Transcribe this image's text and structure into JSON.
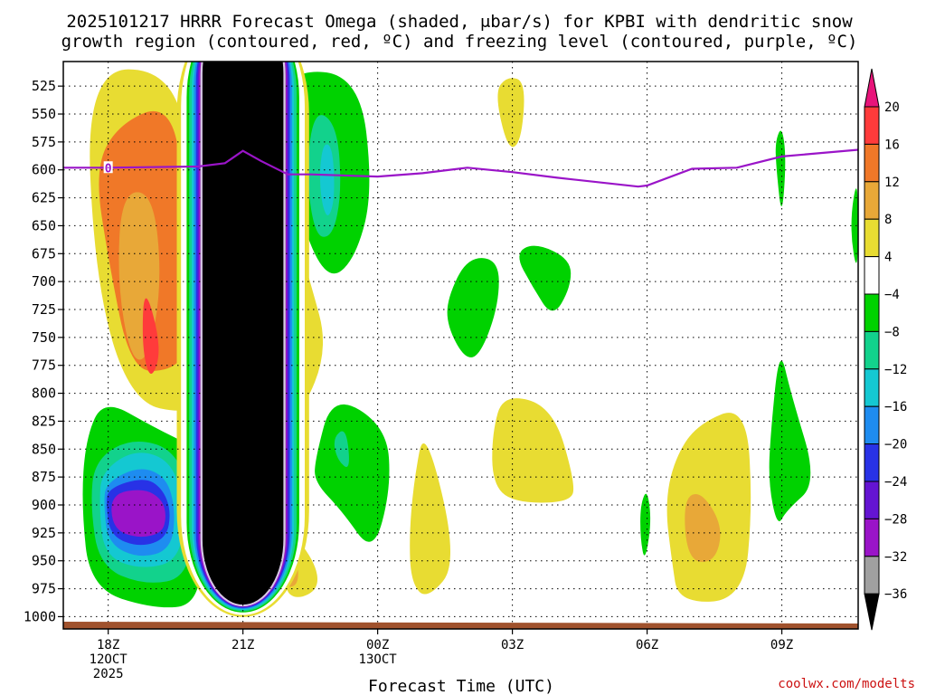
{
  "chart_data": {
    "type": "heatmap",
    "title_line1": "2025101217 HRRR Forecast Omega (shaded, μbar/s) for KPBI with dendritic snow",
    "title_line2": "growth region (contoured, red, ºC) and freezing level (contoured, purple, ºC)",
    "xlabel": "Forecast Time (UTC)",
    "credit": "coolwx.com/modelts",
    "x_domain_hours": [
      -1,
      16.7
    ],
    "y_domain_hPa": [
      503,
      1011
    ],
    "y_ticks": [
      525,
      550,
      575,
      600,
      625,
      650,
      675,
      700,
      725,
      750,
      775,
      800,
      825,
      850,
      875,
      900,
      925,
      950,
      975,
      1000
    ],
    "x_ticks": [
      {
        "hour": 0,
        "lines": [
          "18Z",
          "12OCT",
          "2025"
        ]
      },
      {
        "hour": 3,
        "lines": [
          "21Z"
        ]
      },
      {
        "hour": 6,
        "lines": [
          "00Z",
          "13OCT"
        ]
      },
      {
        "hour": 9,
        "lines": [
          "03Z"
        ]
      },
      {
        "hour": 12,
        "lines": [
          "06Z"
        ]
      },
      {
        "hour": 15,
        "lines": [
          "09Z"
        ]
      }
    ],
    "colorbar": {
      "labels": [
        "20",
        "16",
        "12",
        "8",
        "4",
        "−4",
        "−8",
        "−12",
        "−16",
        "−20",
        "−24",
        "−28",
        "−32",
        "−36"
      ],
      "bands": [
        {
          "from": 16,
          "to": 20,
          "color": "#ff3b3b"
        },
        {
          "from": 12,
          "to": 16,
          "color": "#f07828"
        },
        {
          "from": 8,
          "to": 12,
          "color": "#e8a838"
        },
        {
          "from": 4,
          "to": 8,
          "color": "#e8dc32"
        },
        {
          "from": -4,
          "to": 4,
          "color": "#ffffff"
        },
        {
          "from": -8,
          "to": -4,
          "color": "#00d200"
        },
        {
          "from": -12,
          "to": -8,
          "color": "#12d28c"
        },
        {
          "from": -16,
          "to": -12,
          "color": "#14c8d2"
        },
        {
          "from": -20,
          "to": -16,
          "color": "#1e8cf0"
        },
        {
          "from": -24,
          "to": -20,
          "color": "#2832e6"
        },
        {
          "from": -28,
          "to": -24,
          "color": "#6414d2"
        },
        {
          "from": -32,
          "to": -28,
          "color": "#9a14c8"
        },
        {
          "from": -36,
          "to": -32,
          "color": "#a0a0a0"
        }
      ],
      "over_color": "#e8147a",
      "under_color": "#000000"
    },
    "freezing_level": {
      "label": "0",
      "color": "#9a14c8",
      "points": [
        [
          -1,
          598
        ],
        [
          0,
          598
        ],
        [
          2,
          597
        ],
        [
          2.6,
          594
        ],
        [
          3,
          583
        ],
        [
          3.4,
          592
        ],
        [
          4,
          604
        ],
        [
          4.5,
          604
        ],
        [
          6,
          606
        ],
        [
          7,
          603
        ],
        [
          8,
          598
        ],
        [
          9,
          602
        ],
        [
          10,
          607
        ],
        [
          11.8,
          615
        ],
        [
          12,
          614
        ],
        [
          13,
          599
        ],
        [
          14,
          598
        ],
        [
          15,
          588
        ],
        [
          16.7,
          582
        ]
      ]
    },
    "omega_fields": [
      {
        "value": 6,
        "points": [
          [
            -0.5,
            510
          ],
          [
            1.4,
            510
          ],
          [
            1.9,
            600
          ],
          [
            2.0,
            800
          ],
          [
            1.8,
            819
          ],
          [
            0.5,
            808
          ],
          [
            -0.3,
            700
          ]
        ]
      },
      {
        "value": 14,
        "points": [
          [
            0.2,
            560
          ],
          [
            1.3,
            540
          ],
          [
            1.7,
            600
          ],
          [
            1.8,
            760
          ],
          [
            1.4,
            780
          ],
          [
            0.5,
            780
          ],
          [
            0.0,
            680
          ],
          [
            -0.3,
            600
          ]
        ]
      },
      {
        "value": 10,
        "points": [
          [
            0.3,
            620
          ],
          [
            1.0,
            620
          ],
          [
            1.2,
            700
          ],
          [
            0.9,
            770
          ],
          [
            0.5,
            770
          ],
          [
            0.2,
            700
          ]
        ]
      },
      {
        "value": 18,
        "points": [
          [
            0.8,
            700
          ],
          [
            1.2,
            760
          ],
          [
            0.95,
            790
          ],
          [
            0.75,
            760
          ]
        ]
      },
      {
        "value": 18,
        "points": [
          [
            1.7,
            515
          ],
          [
            1.95,
            515
          ],
          [
            2.0,
            600
          ],
          [
            1.8,
            630
          ],
          [
            1.7,
            580
          ]
        ]
      },
      {
        "value": -6,
        "points": [
          [
            -0.5,
            840
          ],
          [
            -0.1,
            805
          ],
          [
            1.0,
            830
          ],
          [
            2.0,
            850
          ],
          [
            2.1,
            930
          ],
          [
            2.0,
            990
          ],
          [
            1.0,
            993
          ],
          [
            -0.4,
            975
          ],
          [
            -0.6,
            900
          ]
        ]
      },
      {
        "value": -10,
        "points": [
          [
            -0.3,
            860
          ],
          [
            0.5,
            840
          ],
          [
            1.5,
            850
          ],
          [
            1.9,
            900
          ],
          [
            1.8,
            965
          ],
          [
            0.8,
            972
          ],
          [
            -0.2,
            955
          ],
          [
            -0.4,
            900
          ]
        ]
      },
      {
        "value": -14,
        "points": [
          [
            -0.15,
            870
          ],
          [
            0.6,
            850
          ],
          [
            1.4,
            860
          ],
          [
            1.7,
            900
          ],
          [
            1.6,
            950
          ],
          [
            0.7,
            958
          ],
          [
            -0.1,
            945
          ],
          [
            -0.2,
            900
          ]
        ]
      },
      {
        "value": -18,
        "points": [
          [
            -0.05,
            880
          ],
          [
            0.7,
            865
          ],
          [
            1.3,
            875
          ],
          [
            1.5,
            905
          ],
          [
            1.4,
            940
          ],
          [
            0.7,
            948
          ],
          [
            0.0,
            935
          ],
          [
            -0.1,
            900
          ]
        ]
      },
      {
        "value": -22,
        "points": [
          [
            0.0,
            885
          ],
          [
            0.8,
            875
          ],
          [
            1.2,
            885
          ],
          [
            1.4,
            905
          ],
          [
            1.3,
            930
          ],
          [
            0.7,
            938
          ],
          [
            0.05,
            928
          ],
          [
            -0.05,
            900
          ]
        ]
      },
      {
        "value": -30,
        "points": [
          [
            0.05,
            890
          ],
          [
            0.8,
            885
          ],
          [
            1.2,
            895
          ],
          [
            1.3,
            910
          ],
          [
            1.2,
            925
          ],
          [
            0.7,
            930
          ],
          [
            0.1,
            922
          ]
        ]
      },
      {
        "value": -6,
        "points": [
          [
            4.0,
            510
          ],
          [
            5.6,
            515
          ],
          [
            5.9,
            620
          ],
          [
            5.5,
            680
          ],
          [
            4.9,
            700
          ],
          [
            4.3,
            650
          ],
          [
            3.9,
            560
          ]
        ]
      },
      {
        "value": -10,
        "points": [
          [
            4.6,
            545
          ],
          [
            5.1,
            560
          ],
          [
            5.2,
            620
          ],
          [
            5.0,
            660
          ],
          [
            4.6,
            660
          ],
          [
            4.4,
            600
          ]
        ]
      },
      {
        "value": -14,
        "points": [
          [
            4.8,
            575
          ],
          [
            5.0,
            580
          ],
          [
            5.05,
            625
          ],
          [
            4.9,
            645
          ],
          [
            4.75,
            630
          ],
          [
            4.7,
            600
          ]
        ]
      },
      {
        "value": 6,
        "points": [
          [
            3.9,
            620
          ],
          [
            4.5,
            700
          ],
          [
            4.9,
            760
          ],
          [
            4.3,
            820
          ],
          [
            3.9,
            800
          ]
        ]
      },
      {
        "value": 6,
        "points": [
          [
            3.9,
            915
          ],
          [
            4.6,
            950
          ],
          [
            4.7,
            975
          ],
          [
            4.2,
            985
          ],
          [
            3.9,
            975
          ]
        ]
      },
      {
        "value": 10,
        "points": [
          [
            3.9,
            940
          ],
          [
            4.2,
            945
          ],
          [
            4.25,
            970
          ],
          [
            4.0,
            975
          ],
          [
            3.9,
            965
          ]
        ]
      },
      {
        "value": -6,
        "points": [
          [
            4.6,
            860
          ],
          [
            5.0,
            800
          ],
          [
            6.2,
            830
          ],
          [
            6.3,
            885
          ],
          [
            5.9,
            945
          ],
          [
            5.2,
            905
          ],
          [
            4.6,
            880
          ]
        ]
      },
      {
        "value": -10,
        "points": [
          [
            5.0,
            840
          ],
          [
            5.3,
            830
          ],
          [
            5.4,
            870
          ],
          [
            5.1,
            860
          ]
        ]
      },
      {
        "value": 6,
        "points": [
          [
            8.9,
            516
          ],
          [
            9.3,
            521
          ],
          [
            9.2,
            575
          ],
          [
            8.9,
            583
          ],
          [
            8.6,
            530
          ]
        ]
      },
      {
        "value": 6,
        "points": [
          [
            6.8,
            880
          ],
          [
            7.05,
            826
          ],
          [
            7.8,
            952
          ],
          [
            7.1,
            985
          ],
          [
            6.75,
            970
          ],
          [
            6.7,
            930
          ]
        ]
      },
      {
        "value": -6,
        "points": [
          [
            7.55,
            715
          ],
          [
            8.0,
            678
          ],
          [
            8.7,
            680
          ],
          [
            8.7,
            720
          ],
          [
            8.3,
            765
          ],
          [
            7.95,
            770
          ],
          [
            7.55,
            740
          ]
        ]
      },
      {
        "value": -6,
        "points": [
          [
            9.05,
            675
          ],
          [
            9.5,
            665
          ],
          [
            10.3,
            680
          ],
          [
            10.3,
            705
          ],
          [
            9.9,
            733
          ],
          [
            9.45,
            705
          ]
        ]
      },
      {
        "value": 6,
        "points": [
          [
            8.55,
            835
          ],
          [
            8.8,
            800
          ],
          [
            9.9,
            812
          ],
          [
            10.4,
            880
          ],
          [
            10.3,
            898
          ],
          [
            9.0,
            898
          ],
          [
            8.55,
            880
          ]
        ]
      },
      {
        "value": -6,
        "points": [
          [
            11.85,
            900
          ],
          [
            12.0,
            885
          ],
          [
            12.1,
            915
          ],
          [
            11.95,
            952
          ],
          [
            11.85,
            930
          ]
        ]
      },
      {
        "value": 6,
        "points": [
          [
            12.6,
            860
          ],
          [
            13.1,
            828
          ],
          [
            14.2,
            810
          ],
          [
            14.35,
            900
          ],
          [
            14.15,
            985
          ],
          [
            12.7,
            988
          ],
          [
            12.55,
            950
          ],
          [
            12.4,
            900
          ]
        ]
      },
      {
        "value": 10,
        "points": [
          [
            12.8,
            895
          ],
          [
            13.2,
            887
          ],
          [
            13.7,
            920
          ],
          [
            13.5,
            952
          ],
          [
            12.9,
            950
          ]
        ]
      },
      {
        "value": -6,
        "points": [
          [
            14.85,
            575
          ],
          [
            15.0,
            560
          ],
          [
            15.1,
            590
          ],
          [
            15.0,
            645
          ],
          [
            14.88,
            600
          ]
        ]
      },
      {
        "value": -6,
        "points": [
          [
            14.75,
            835
          ],
          [
            14.95,
            757
          ],
          [
            15.2,
            800
          ],
          [
            15.8,
            880
          ],
          [
            15.1,
            905
          ],
          [
            14.9,
            920
          ],
          [
            14.7,
            880
          ]
        ]
      },
      {
        "value": -6,
        "points": [
          [
            16.5,
            650
          ],
          [
            16.7,
            600
          ],
          [
            16.7,
            700
          ]
        ]
      }
    ],
    "core_updraft": {
      "center_hour": 3.0,
      "half_width_hours": 0.95,
      "top_hPa": 503,
      "bottom_hPa": 990,
      "value": -40
    },
    "surface_band_color": "#a0522d"
  }
}
